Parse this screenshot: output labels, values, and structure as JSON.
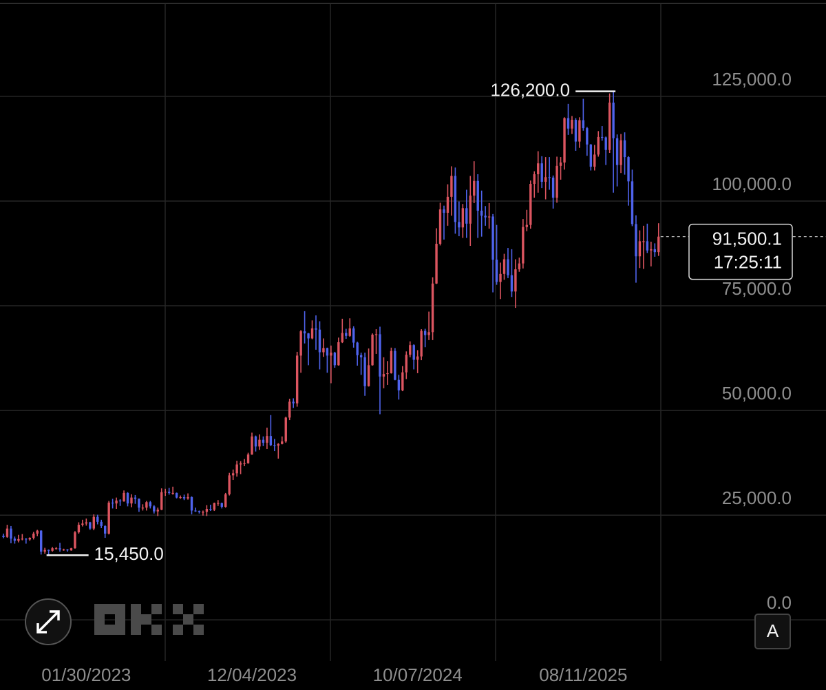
{
  "chart_data": {
    "type": "candlestick",
    "up_color": "#dc5560",
    "down_color": "#4f63ec",
    "grid": true,
    "ylim": [
      -10000,
      148000
    ],
    "yticks": [
      {
        "value": 0,
        "label": "0.0"
      },
      {
        "value": 25000,
        "label": "25,000.0"
      },
      {
        "value": 50000,
        "label": "50,000.0"
      },
      {
        "value": 75000,
        "label": "75,000.0"
      },
      {
        "value": 100000,
        "label": "100,000.0"
      },
      {
        "value": 125000,
        "label": "125,000.0"
      }
    ],
    "categories": [
      null,
      null,
      null,
      null,
      null,
      null,
      null,
      null,
      null,
      null,
      null,
      null,
      null,
      null,
      null,
      null,
      null,
      null,
      null,
      null,
      null,
      null,
      "01/30/2023",
      null,
      null,
      null,
      null,
      null,
      null,
      null,
      null,
      null,
      null,
      null,
      null,
      null,
      null,
      null,
      null,
      null,
      null,
      null,
      null,
      null,
      null,
      null,
      null,
      null,
      null,
      null,
      null,
      null,
      null,
      null,
      null,
      null,
      null,
      null,
      null,
      null,
      null,
      null,
      null,
      null,
      null,
      null,
      "12/04/2023",
      null,
      null,
      null,
      null,
      null,
      null,
      null,
      null,
      null,
      null,
      null,
      null,
      null,
      null,
      null,
      null,
      null,
      null,
      null,
      null,
      null,
      null,
      null,
      null,
      null,
      null,
      null,
      null,
      null,
      null,
      null,
      null,
      null,
      null,
      null,
      null,
      null,
      null,
      null,
      null,
      null,
      null,
      null,
      "10/07/2024",
      null,
      null,
      null,
      null,
      null,
      null,
      null,
      null,
      null,
      null,
      null,
      null,
      null,
      null,
      null,
      null,
      null,
      null,
      null,
      null,
      null,
      null,
      null,
      null,
      null,
      null,
      null,
      null,
      null,
      null,
      null,
      null,
      null,
      null,
      null,
      null,
      null,
      null,
      null,
      null,
      null,
      null,
      null,
      "08/11/2025",
      null,
      null,
      null,
      null,
      null,
      null,
      null,
      null,
      null,
      null,
      null,
      null,
      null,
      null,
      null,
      null,
      null,
      null,
      null,
      null
    ],
    "open": [
      20100,
      19800,
      21800,
      19400,
      18900,
      19300,
      19400,
      19200,
      19600,
      20600,
      21300,
      16300,
      16700,
      16500,
      17100,
      17100,
      16800,
      16800,
      16600,
      17100,
      20900,
      22700,
      23000,
      23300,
      21800,
      24600,
      23400,
      22400,
      20600,
      28000,
      27800,
      28500,
      28300,
      30300,
      27800,
      29200,
      28900,
      26800,
      26800,
      28100,
      27100,
      25900,
      26300,
      30500,
      30600,
      30300,
      30300,
      29200,
      29300,
      29000,
      29300,
      26100,
      26000,
      25800,
      25800,
      26500,
      26300,
      27900,
      27900,
      27000,
      30000,
      34500,
      35000,
      37100,
      37400,
      37400,
      39500,
      43800,
      41400,
      43000,
      42300,
      43900,
      41700,
      41600,
      42000,
      42600,
      48300,
      52100,
      51700,
      63100,
      68900,
      68400,
      67200,
      69600,
      69300,
      63900,
      64900,
      63100,
      63800,
      60800,
      66300,
      68500,
      67800,
      69600,
      66200,
      63200,
      62700,
      55800,
      60800,
      68100,
      68200,
      58100,
      58700,
      58900,
      64200,
      57300,
      54800,
      59100,
      63300,
      65600,
      62100,
      62900,
      69000,
      68000,
      68700,
      80300,
      89800,
      98000,
      97200,
      101000,
      106000,
      95000,
      93700,
      98300,
      94600,
      101300,
      104800,
      97700,
      96500,
      96100,
      96300,
      86000,
      80700,
      82600,
      86100,
      82300,
      78400,
      83700,
      85100,
      93800,
      94300,
      104100,
      106400,
      109000,
      104600,
      105700,
      105600,
      100800,
      108400,
      109200,
      119800,
      117300,
      119400,
      114200,
      119300,
      117400,
      113500,
      108200,
      111100,
      115300,
      115200,
      112200,
      123500,
      115000,
      108600,
      114500,
      110500,
      104700,
      94500,
      86800,
      90400,
      90400,
      88200,
      88500,
      87800
    ],
    "high": [
      20600,
      22700,
      22400,
      19900,
      20300,
      20500,
      19500,
      19700,
      21000,
      21500,
      21400,
      17200,
      16800,
      17400,
      17400,
      18400,
      17000,
      16900,
      17200,
      21200,
      23300,
      23900,
      24200,
      23400,
      25200,
      25100,
      23900,
      22600,
      28400,
      28900,
      29200,
      28800,
      30900,
      30500,
      30000,
      29800,
      29000,
      27600,
      28400,
      28400,
      27400,
      26800,
      31400,
      31300,
      31500,
      31800,
      30400,
      29700,
      29900,
      30200,
      29500,
      26800,
      26100,
      26100,
      27400,
      27500,
      28000,
      28600,
      28000,
      30300,
      35100,
      35900,
      38000,
      37900,
      38400,
      39900,
      44700,
      44000,
      44300,
      43800,
      45900,
      48900,
      43200,
      42200,
      43800,
      48500,
      52800,
      52900,
      64000,
      69200,
      73700,
      68500,
      71500,
      72700,
      71300,
      67200,
      65000,
      65500,
      64000,
      67400,
      71900,
      69500,
      72000,
      70100,
      66400,
      63800,
      63800,
      64800,
      68400,
      69400,
      70000,
      62700,
      61800,
      65000,
      64900,
      58500,
      60600,
      64100,
      66500,
      65800,
      64400,
      69400,
      69500,
      73600,
      81800,
      93500,
      99600,
      98900,
      104000,
      108300,
      108000,
      99900,
      99300,
      102700,
      106000,
      109500,
      106400,
      102500,
      98800,
      99500,
      96900,
      94300,
      85300,
      87400,
      88800,
      88500,
      86100,
      86500,
      95700,
      97900,
      104900,
      107100,
      111900,
      110700,
      110500,
      110500,
      106100,
      110600,
      110500,
      120000,
      123200,
      120300,
      119800,
      120000,
      124400,
      117700,
      113600,
      113400,
      116700,
      117900,
      115400,
      125700,
      126200,
      115900,
      116000,
      116400,
      110700,
      107500,
      96600,
      93000,
      94100,
      94600,
      90300,
      89900,
      94700
    ],
    "low": [
      19500,
      19600,
      18300,
      18200,
      18500,
      19000,
      18200,
      18900,
      19200,
      20000,
      15600,
      15800,
      15450,
      16300,
      16800,
      16300,
      16500,
      16300,
      16500,
      17000,
      20600,
      22300,
      22500,
      21500,
      21400,
      22800,
      21900,
      19600,
      20400,
      26600,
      26500,
      27200,
      28200,
      27100,
      26900,
      27700,
      25800,
      26100,
      26100,
      26600,
      25400,
      24800,
      26200,
      29600,
      29900,
      29900,
      29000,
      28900,
      28600,
      28700,
      25200,
      25800,
      25400,
      24900,
      24800,
      26000,
      26000,
      27200,
      26600,
      26800,
      29700,
      33400,
      34200,
      34800,
      36700,
      37300,
      39400,
      40200,
      40600,
      41500,
      40800,
      41500,
      40300,
      38500,
      41900,
      42300,
      47700,
      50600,
      50900,
      59000,
      66000,
      60800,
      67000,
      64500,
      59800,
      62800,
      59000,
      56500,
      60200,
      60700,
      66100,
      67100,
      67600,
      65000,
      60700,
      58500,
      53500,
      55700,
      60700,
      63500,
      49100,
      55300,
      56100,
      58800,
      57200,
      52600,
      54600,
      57500,
      62700,
      59800,
      58900,
      62000,
      65100,
      66800,
      66800,
      80200,
      89400,
      90800,
      94100,
      96500,
      92200,
      91600,
      91200,
      91200,
      89300,
      99500,
      91200,
      91500,
      94100,
      93400,
      78200,
      80000,
      76600,
      81200,
      81600,
      77100,
      74500,
      83100,
      83900,
      92800,
      93400,
      100800,
      102000,
      103100,
      100400,
      102700,
      98200,
      99600,
      105100,
      107500,
      115800,
      116000,
      112000,
      112700,
      116800,
      110800,
      107300,
      107300,
      110600,
      114400,
      108600,
      111500,
      102000,
      103500,
      106700,
      106300,
      98900,
      94000,
      80500,
      84000,
      83800,
      87600,
      84400,
      86700,
      86900
    ],
    "close": [
      19800,
      21800,
      19400,
      18900,
      19300,
      19400,
      19200,
      19600,
      20600,
      21300,
      16300,
      16700,
      16500,
      17100,
      17100,
      16800,
      16800,
      16600,
      17100,
      20900,
      22700,
      23000,
      23300,
      21800,
      24600,
      23400,
      22400,
      20600,
      28000,
      27800,
      28500,
      28300,
      30300,
      27800,
      29200,
      28900,
      26800,
      26800,
      28100,
      27100,
      25900,
      26300,
      30500,
      30600,
      30300,
      30300,
      29200,
      29300,
      29000,
      29300,
      26100,
      26000,
      25800,
      25800,
      26500,
      26300,
      27900,
      27900,
      27000,
      30000,
      34500,
      35000,
      37100,
      37400,
      37400,
      39500,
      43800,
      41400,
      43000,
      42300,
      43900,
      41700,
      41600,
      42000,
      42600,
      48300,
      52100,
      51700,
      63100,
      68900,
      68400,
      67200,
      69600,
      69300,
      63900,
      64900,
      63100,
      63800,
      60800,
      66300,
      68500,
      67800,
      69600,
      66200,
      63200,
      62700,
      55800,
      60800,
      68100,
      68200,
      58100,
      58700,
      58900,
      64200,
      57300,
      54800,
      59100,
      63300,
      65600,
      62100,
      62900,
      69000,
      68000,
      68700,
      80300,
      89800,
      98000,
      97200,
      101000,
      106000,
      95000,
      93700,
      98300,
      94600,
      101300,
      104800,
      97700,
      96500,
      96100,
      96300,
      86000,
      80700,
      82600,
      86100,
      82300,
      78400,
      83700,
      85100,
      93800,
      94300,
      104100,
      106400,
      109000,
      104600,
      105700,
      105600,
      100800,
      108400,
      109200,
      119800,
      117300,
      119400,
      114200,
      119300,
      117400,
      113500,
      108200,
      111100,
      115300,
      115200,
      112200,
      123500,
      115000,
      108600,
      114500,
      110500,
      104700,
      94500,
      86800,
      90400,
      90400,
      88200,
      88500,
      87800,
      91500.1
    ],
    "annotations": [
      {
        "value": 126200,
        "label": "126,200.0"
      },
      {
        "value": 15450,
        "label": "15,450.0"
      }
    ],
    "last_price": {
      "value": 91500.1,
      "label": "91,500.1"
    },
    "countdown": "17:25:11",
    "button": "A"
  }
}
